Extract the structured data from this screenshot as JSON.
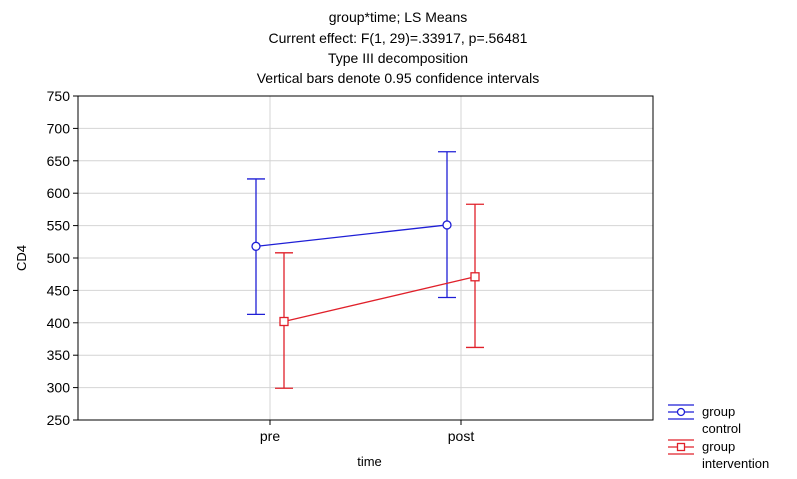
{
  "chart_data": {
    "type": "line",
    "title_lines": [
      "group*time; LS Means",
      "Current effect: F(1, 29)=.33917, p=.56481",
      "Type III decomposition",
      "Vertical bars denote 0.95 confidence intervals"
    ],
    "xlabel": "time",
    "ylabel": "CD4",
    "categories": [
      "pre",
      "post"
    ],
    "ylim": [
      250,
      750
    ],
    "yticks": [
      250,
      300,
      350,
      400,
      450,
      500,
      550,
      600,
      650,
      700,
      750
    ],
    "grid": true,
    "legend_position": "bottom-right",
    "series": [
      {
        "name_lines": [
          "group",
          "control"
        ],
        "color": "#1f1fd6",
        "marker": "circle",
        "values": [
          518,
          551
        ],
        "ci_lower": [
          413,
          439
        ],
        "ci_upper": [
          622,
          664
        ]
      },
      {
        "name_lines": [
          "group",
          "intervention"
        ],
        "color": "#e0202a",
        "marker": "square",
        "values": [
          402,
          471
        ],
        "ci_lower": [
          299,
          362
        ],
        "ci_upper": [
          508,
          583
        ]
      }
    ]
  }
}
